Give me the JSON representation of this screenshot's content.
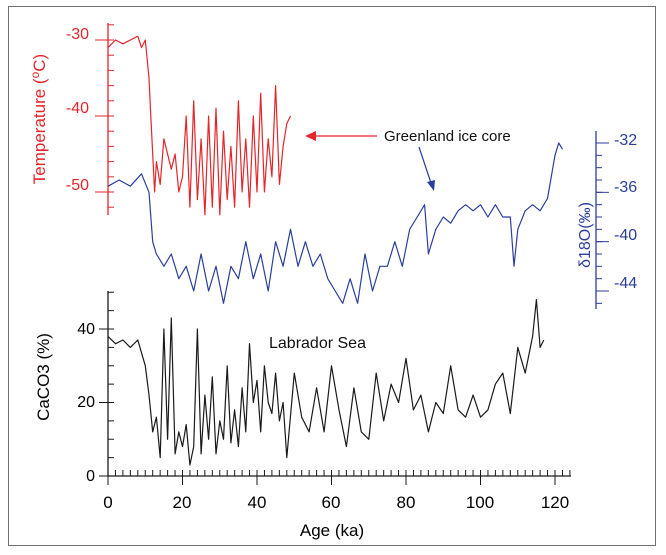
{
  "colors": {
    "temperature": "#e2262b",
    "d18o": "#2b3e9c",
    "caco3": "#1a1a1a",
    "frame": "#6e6e6e"
  },
  "chart_data": [
    {
      "type": "line",
      "panel": "temperature",
      "ylabel_prefix": "Temperature (",
      "ylabel_sup": "o",
      "ylabel_suffix": "C)",
      "ylim": [
        -54,
        -28
      ],
      "yticks": [
        -30,
        -40,
        -50
      ],
      "ytick_labels": [
        "-30",
        "-40",
        "-50"
      ],
      "annotation": "Greenland ice core",
      "x": [
        0,
        2,
        4,
        6,
        8,
        9,
        10,
        11,
        11.5,
        12,
        12.5,
        13,
        14,
        15,
        16,
        17,
        18,
        19,
        20,
        21,
        22,
        23,
        24,
        25,
        26,
        27,
        28,
        29,
        30,
        31,
        32,
        33,
        34,
        35,
        36,
        37,
        38,
        39,
        40,
        41,
        42,
        43,
        44,
        45,
        46,
        47,
        48,
        49
      ],
      "y": [
        -31,
        -30,
        -30.5,
        -30,
        -29.5,
        -31,
        -30,
        -35,
        -40,
        -45,
        -50,
        -46,
        -49,
        -43,
        -45,
        -47,
        -45,
        -50,
        -48,
        -40,
        -52,
        -38,
        -51,
        -43,
        -53,
        -40,
        -52,
        -39,
        -53,
        -42,
        -51,
        -44,
        -52,
        -38,
        -50,
        -43,
        -52,
        -40,
        -50,
        -37,
        -50,
        -43,
        -48,
        -36,
        -49,
        -44,
        -41,
        -40
      ]
    },
    {
      "type": "line",
      "panel": "d18O",
      "ylabel": "δ18O(‰)",
      "ylim": [
        -46.5,
        -31
      ],
      "yticks": [
        -32,
        -36,
        -40,
        -44
      ],
      "ytick_labels": [
        "-32",
        "-36",
        "-40",
        "-44"
      ],
      "x": [
        0,
        3,
        6,
        9,
        11,
        12,
        13,
        15,
        17,
        19,
        21,
        23,
        25,
        27,
        29,
        31,
        33,
        35,
        37,
        39,
        41,
        43,
        45,
        47,
        49,
        51,
        53,
        55,
        57,
        59,
        61,
        63,
        65,
        67,
        69,
        71,
        73,
        75,
        77,
        79,
        81,
        83,
        85,
        86,
        88,
        90,
        92,
        94,
        96,
        98,
        100,
        102,
        104,
        106,
        108,
        109,
        110,
        112,
        114,
        116,
        118,
        120,
        121,
        122
      ],
      "y": [
        -35.5,
        -35,
        -35.5,
        -34.5,
        -36,
        -40,
        -41,
        -42,
        -41,
        -43,
        -42,
        -44,
        -41,
        -44,
        -42,
        -45,
        -42,
        -43,
        -40,
        -43,
        -41,
        -44,
        -40,
        -42,
        -39,
        -42,
        -40,
        -42,
        -41,
        -43,
        -44,
        -45,
        -43,
        -45,
        -41,
        -44,
        -42,
        -42,
        -40,
        -42,
        -39,
        -38,
        -37,
        -41,
        -39,
        -38,
        -38.5,
        -37.5,
        -37,
        -37.5,
        -37,
        -38,
        -37,
        -38,
        -38,
        -42,
        -39,
        -37.5,
        -37,
        -37.5,
        -36.5,
        -33,
        -32,
        -32.5
      ]
    },
    {
      "type": "line",
      "panel": "CaCO3",
      "ylabel": "CaCO3 (%)",
      "annotation": "Labrador Sea",
      "xlabel": "Age (ka)",
      "xlim": [
        0,
        125
      ],
      "xticks": [
        0,
        20,
        40,
        60,
        80,
        100,
        120
      ],
      "xtick_labels": [
        "0",
        "20",
        "40",
        "60",
        "80",
        "100",
        "120"
      ],
      "ylim": [
        0,
        50
      ],
      "yticks": [
        0,
        20,
        40
      ],
      "ytick_labels": [
        "0",
        "20",
        "40"
      ],
      "x": [
        0,
        2,
        4,
        6,
        8,
        10,
        11,
        12,
        13,
        14,
        15,
        16,
        17,
        18,
        19,
        20,
        21,
        22,
        23,
        24,
        25,
        26,
        27,
        28,
        29,
        30,
        31,
        32,
        33,
        34,
        35,
        36,
        37,
        38,
        39,
        40,
        41,
        42,
        43,
        44,
        45,
        46,
        47,
        48,
        50,
        52,
        54,
        56,
        58,
        60,
        62,
        64,
        66,
        68,
        70,
        72,
        74,
        76,
        78,
        80,
        82,
        84,
        86,
        88,
        90,
        92,
        94,
        96,
        98,
        100,
        102,
        104,
        106,
        108,
        110,
        112,
        114,
        115,
        116,
        117
      ],
      "y": [
        38,
        36,
        37,
        35,
        37,
        30,
        22,
        12,
        16,
        5,
        40,
        10,
        43,
        6,
        12,
        8,
        14,
        3,
        8,
        40,
        6,
        22,
        10,
        27,
        6,
        15,
        10,
        30,
        9,
        18,
        8,
        24,
        12,
        36,
        20,
        26,
        12,
        30,
        20,
        17,
        28,
        15,
        20,
        5,
        28,
        16,
        12,
        24,
        12,
        30,
        18,
        8,
        24,
        12,
        10,
        28,
        15,
        25,
        20,
        32,
        18,
        22,
        12,
        20,
        17,
        30,
        18,
        16,
        22,
        16,
        18,
        25,
        28,
        17,
        35,
        28,
        38,
        48,
        35,
        37
      ]
    }
  ]
}
